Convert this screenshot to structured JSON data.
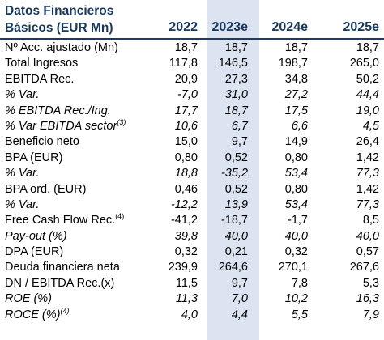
{
  "header": {
    "title_line1": "Datos Financieros",
    "title_line2": "Básicos (EUR Mn)",
    "years": [
      "2022",
      "2023e",
      "2024e",
      "2025e"
    ]
  },
  "rows": [
    {
      "label": "Nº Acc. ajustado (Mn)",
      "sup": "",
      "italic": false,
      "values": [
        "18,7",
        "18,7",
        "18,7",
        "18,7"
      ]
    },
    {
      "label": "Total Ingresos",
      "sup": "",
      "italic": false,
      "values": [
        "117,8",
        "146,5",
        "198,7",
        "265,0"
      ]
    },
    {
      "label": "EBITDA Rec.",
      "sup": "",
      "italic": false,
      "values": [
        "20,9",
        "27,3",
        "34,8",
        "50,2"
      ]
    },
    {
      "label": "% Var.",
      "sup": "",
      "italic": true,
      "values": [
        "-7,0",
        "31,0",
        "27,2",
        "44,4"
      ]
    },
    {
      "label": "% EBITDA Rec./Ing.",
      "sup": "",
      "italic": true,
      "values": [
        "17,7",
        "18,7",
        "17,5",
        "19,0"
      ]
    },
    {
      "label": "% Var EBITDA sector",
      "sup": "(3)",
      "italic": true,
      "values": [
        "10,6",
        "6,7",
        "6,6",
        "4,5"
      ]
    },
    {
      "label": "Beneficio neto",
      "sup": "",
      "italic": false,
      "values": [
        "15,0",
        "9,7",
        "14,9",
        "26,4"
      ]
    },
    {
      "label": "BPA (EUR)",
      "sup": "",
      "italic": false,
      "values": [
        "0,80",
        "0,52",
        "0,80",
        "1,42"
      ]
    },
    {
      "label": "% Var.",
      "sup": "",
      "italic": true,
      "values": [
        "18,8",
        "-35,2",
        "53,4",
        "77,3"
      ]
    },
    {
      "label": "BPA ord. (EUR)",
      "sup": "",
      "italic": false,
      "values": [
        "0,46",
        "0,52",
        "0,80",
        "1,42"
      ]
    },
    {
      "label": "% Var.",
      "sup": "",
      "italic": true,
      "values": [
        "-12,2",
        "13,9",
        "53,4",
        "77,3"
      ]
    },
    {
      "label": "Free Cash Flow Rec.",
      "sup": "(4)",
      "italic": false,
      "values": [
        "-41,2",
        "-18,7",
        "-1,7",
        "8,5"
      ]
    },
    {
      "label": "Pay-out (%)",
      "sup": "",
      "italic": true,
      "values": [
        "39,8",
        "40,0",
        "40,0",
        "40,0"
      ]
    },
    {
      "label": "DPA (EUR)",
      "sup": "",
      "italic": false,
      "values": [
        "0,32",
        "0,21",
        "0,32",
        "0,57"
      ]
    },
    {
      "label": "Deuda financiera neta",
      "sup": "",
      "italic": false,
      "values": [
        "239,9",
        "264,6",
        "270,1",
        "267,6"
      ]
    },
    {
      "label": "DN / EBITDA Rec.(x)",
      "sup": "",
      "italic": false,
      "values": [
        "11,5",
        "9,7",
        "7,8",
        "5,3"
      ]
    },
    {
      "label": "ROE (%)",
      "sup": "",
      "italic": true,
      "values": [
        "11,3",
        "7,0",
        "10,2",
        "16,3"
      ]
    },
    {
      "label": "ROCE (%)",
      "sup": "(4)",
      "italic": true,
      "values": [
        "4,0",
        "4,4",
        "5,5",
        "7,9"
      ]
    }
  ]
}
